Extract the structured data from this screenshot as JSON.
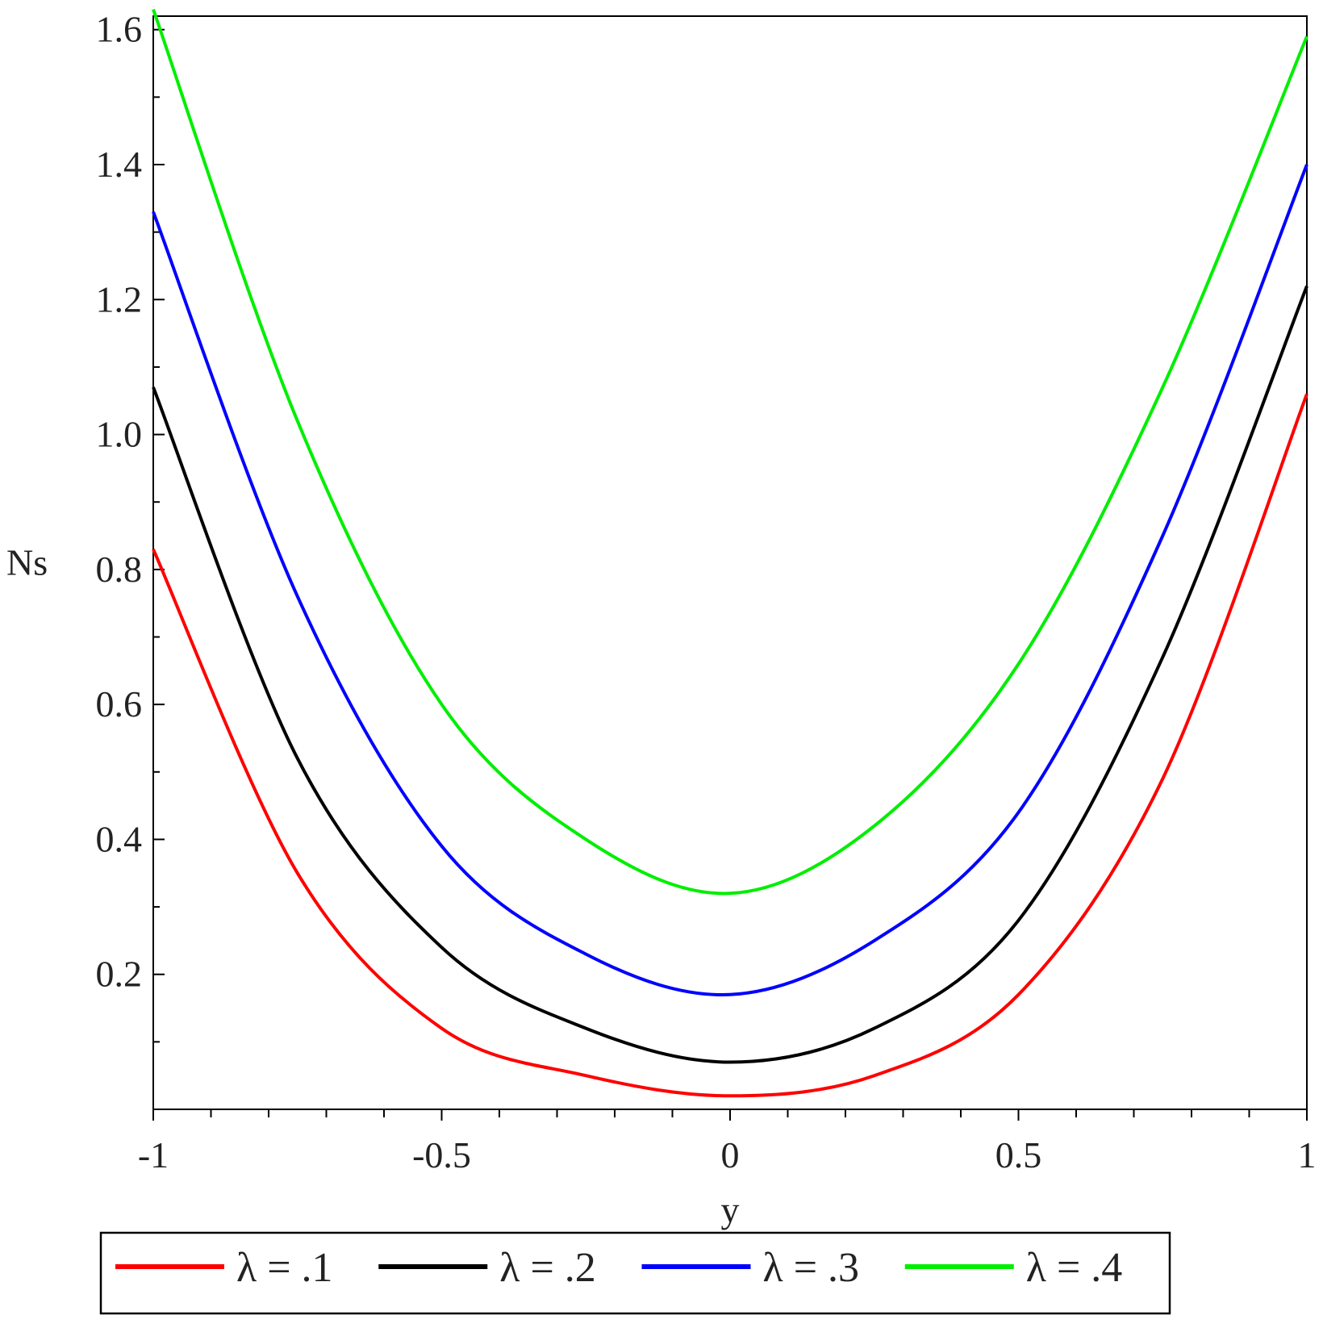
{
  "chart_data": {
    "type": "line",
    "title": "",
    "xlabel": "y",
    "ylabel": "Ns",
    "xlim": [
      -1,
      1
    ],
    "ylim": [
      0,
      1.62
    ],
    "grid": false,
    "legend_placement": "bottom",
    "x_ticks": [
      {
        "value": -1,
        "label": "-1"
      },
      {
        "value": -0.5,
        "label": "-0.5"
      },
      {
        "value": 0,
        "label": "0"
      },
      {
        "value": 0.5,
        "label": "0.5"
      },
      {
        "value": 1,
        "label": "1"
      }
    ],
    "y_ticks": [
      {
        "value": 0.2,
        "label": "0.2"
      },
      {
        "value": 0.4,
        "label": "0.4"
      },
      {
        "value": 0.6,
        "label": "0.6"
      },
      {
        "value": 0.8,
        "label": "0.8"
      },
      {
        "value": 1.0,
        "label": "1.0"
      },
      {
        "value": 1.2,
        "label": "1.2"
      },
      {
        "value": 1.4,
        "label": "1.4"
      },
      {
        "value": 1.6,
        "label": "1.6"
      }
    ],
    "x": [
      -1,
      -0.75,
      -0.5,
      -0.25,
      0,
      0.25,
      0.5,
      0.75,
      1
    ],
    "series": [
      {
        "name": "λ = .1",
        "color": "#ff0000",
        "values": [
          0.83,
          0.35,
          0.12,
          0.05,
          0.02,
          0.05,
          0.17,
          0.49,
          1.06
        ]
      },
      {
        "name": "λ = .2",
        "color": "#000000",
        "values": [
          1.07,
          0.52,
          0.24,
          0.12,
          0.07,
          0.12,
          0.28,
          0.67,
          1.22
        ]
      },
      {
        "name": "λ = .3",
        "color": "#0000ff",
        "values": [
          1.33,
          0.76,
          0.39,
          0.23,
          0.17,
          0.25,
          0.44,
          0.85,
          1.4
        ]
      },
      {
        "name": "λ = .4",
        "color": "#00ee00",
        "values": [
          1.63,
          1.02,
          0.6,
          0.4,
          0.32,
          0.42,
          0.66,
          1.07,
          1.59
        ]
      }
    ]
  }
}
